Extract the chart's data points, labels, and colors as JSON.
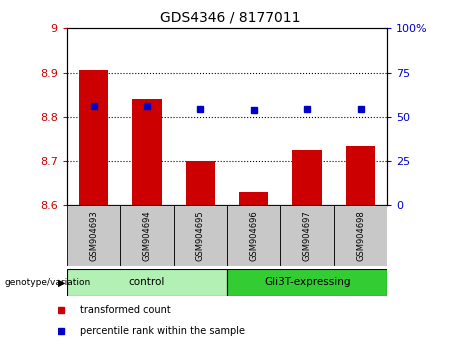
{
  "title": "GDS4346 / 8177011",
  "samples": [
    "GSM904693",
    "GSM904694",
    "GSM904695",
    "GSM904696",
    "GSM904697",
    "GSM904698"
  ],
  "bar_values": [
    8.905,
    8.84,
    8.7,
    8.63,
    8.725,
    8.735
  ],
  "bar_baseline": 8.6,
  "blue_dot_left_axis": [
    8.825,
    8.825,
    8.818,
    8.815,
    8.818,
    8.818
  ],
  "ylim_left": [
    8.6,
    9.0
  ],
  "ylim_right": [
    0,
    100
  ],
  "yticks_left": [
    8.6,
    8.7,
    8.8,
    8.9,
    9.0
  ],
  "ytick_labels_left": [
    "8.6",
    "8.7",
    "8.8",
    "8.9",
    "9"
  ],
  "yticks_right": [
    0,
    25,
    50,
    75,
    100
  ],
  "ytick_labels_right": [
    "0",
    "25",
    "50",
    "75",
    "100%"
  ],
  "bar_color": "#cc0000",
  "dot_color": "#0000cc",
  "groups": [
    {
      "label": "control",
      "indices": [
        0,
        1,
        2
      ],
      "color": "#b3f0b3"
    },
    {
      "label": "Gli3T-expressing",
      "indices": [
        3,
        4,
        5
      ],
      "color": "#33cc33"
    }
  ],
  "group_label_prefix": "genotype/variation",
  "legend_items": [
    {
      "label": "transformed count",
      "color": "#cc0000"
    },
    {
      "label": "percentile rank within the sample",
      "color": "#0000cc"
    }
  ],
  "tick_label_color_left": "#cc0000",
  "tick_label_color_right": "#0000cc",
  "background_label": "#c8c8c8"
}
